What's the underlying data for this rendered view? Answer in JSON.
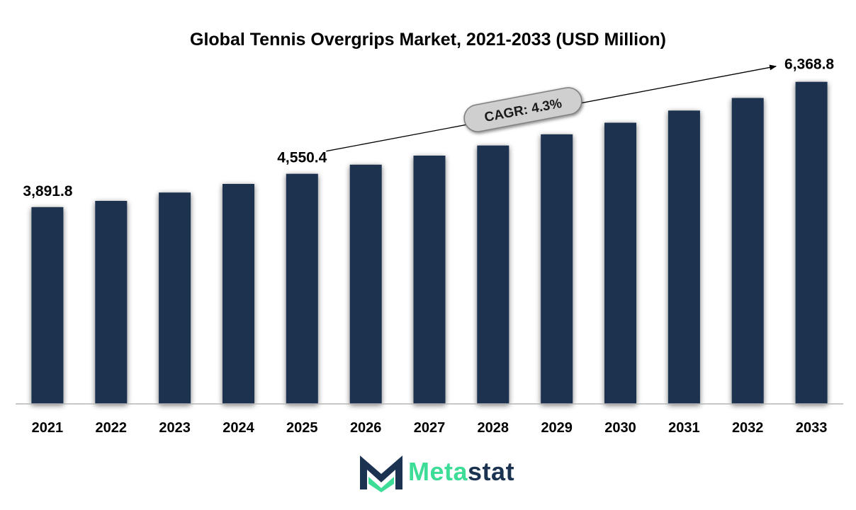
{
  "chart_data": {
    "type": "bar",
    "title": "Global Tennis Overgrips Market, 2021-2033 (USD Million)",
    "xlabel": "",
    "ylabel": "",
    "categories": [
      "2021",
      "2022",
      "2023",
      "2024",
      "2025",
      "2026",
      "2027",
      "2028",
      "2029",
      "2030",
      "2031",
      "2032",
      "2033"
    ],
    "series": [
      {
        "values": [
          3891.8,
          4015.0,
          4180.0,
          4350.0,
          4550.4,
          4730.0,
          4910.0,
          5110.0,
          5330.0,
          5560.0,
          5800.0,
          6050.0,
          6368.8
        ]
      }
    ],
    "data_labels": [
      {
        "category": "2021",
        "text": "3,891.8"
      },
      {
        "category": "2025",
        "text": "4,550.4"
      },
      {
        "category": "2033",
        "text": "6,368.8"
      }
    ],
    "annotation": {
      "text": "CAGR: 4.3%",
      "from": "2025",
      "to": "2033"
    },
    "ylim": [
      0,
      6700
    ],
    "grid": false,
    "bar_color": "#1b3350"
  },
  "logo": {
    "part1": "Meta",
    "part2": "stat"
  }
}
